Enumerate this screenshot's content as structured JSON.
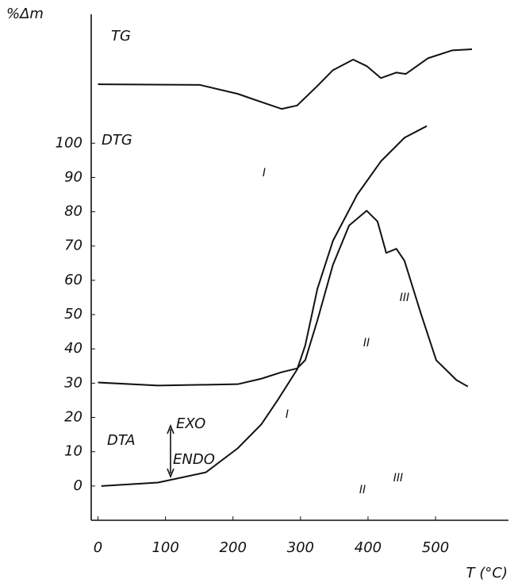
{
  "chart_data": {
    "type": "line",
    "y_label": "%Δm",
    "x_label": "T (°C)",
    "xlim": [
      -10,
      608
    ],
    "ylim": [
      -10,
      137.6
    ],
    "xticks": [
      0,
      100,
      200,
      300,
      400,
      500
    ],
    "yticks": [
      0,
      10,
      20,
      30,
      40,
      50,
      60,
      70,
      80,
      90,
      100
    ],
    "grid": false,
    "series": [
      {
        "name": "TG",
        "color": "#111111",
        "x": [
          5,
          89,
          160,
          207,
          242,
          266,
          295,
          307,
          325,
          348,
          384,
          419,
          454,
          487
        ],
        "values": [
          0,
          1,
          4,
          11,
          18,
          25,
          34,
          41,
          57.5,
          71.5,
          85,
          94.7,
          101.6,
          105
        ]
      },
      {
        "name": "DTG",
        "color": "#111111",
        "x": [
          0,
          89,
          207,
          242,
          272,
          295,
          307,
          325,
          348,
          372,
          398,
          414,
          427,
          442,
          454,
          478,
          501,
          531,
          548
        ],
        "values": [
          30.2,
          29.3,
          29.7,
          31.3,
          33.2,
          34.3,
          36.7,
          48.3,
          64.5,
          76,
          80.3,
          77.2,
          68,
          69.2,
          65.7,
          50.5,
          36.7,
          30.9,
          29
        ]
      },
      {
        "name": "DTA",
        "color": "#111111",
        "x": [
          0,
          151,
          207,
          242,
          272,
          295,
          325,
          348,
          378,
          398,
          419,
          442,
          456,
          489,
          525,
          554
        ],
        "values": [
          117.2,
          117,
          114.4,
          112,
          110,
          111,
          116.7,
          121.3,
          124.4,
          122.5,
          119,
          120.6,
          120.2,
          124.8,
          127.1,
          127.4
        ]
      }
    ],
    "annotations": [
      "I",
      "II",
      "III",
      "I",
      "II",
      "III",
      "EXO",
      "ENDO"
    ]
  }
}
